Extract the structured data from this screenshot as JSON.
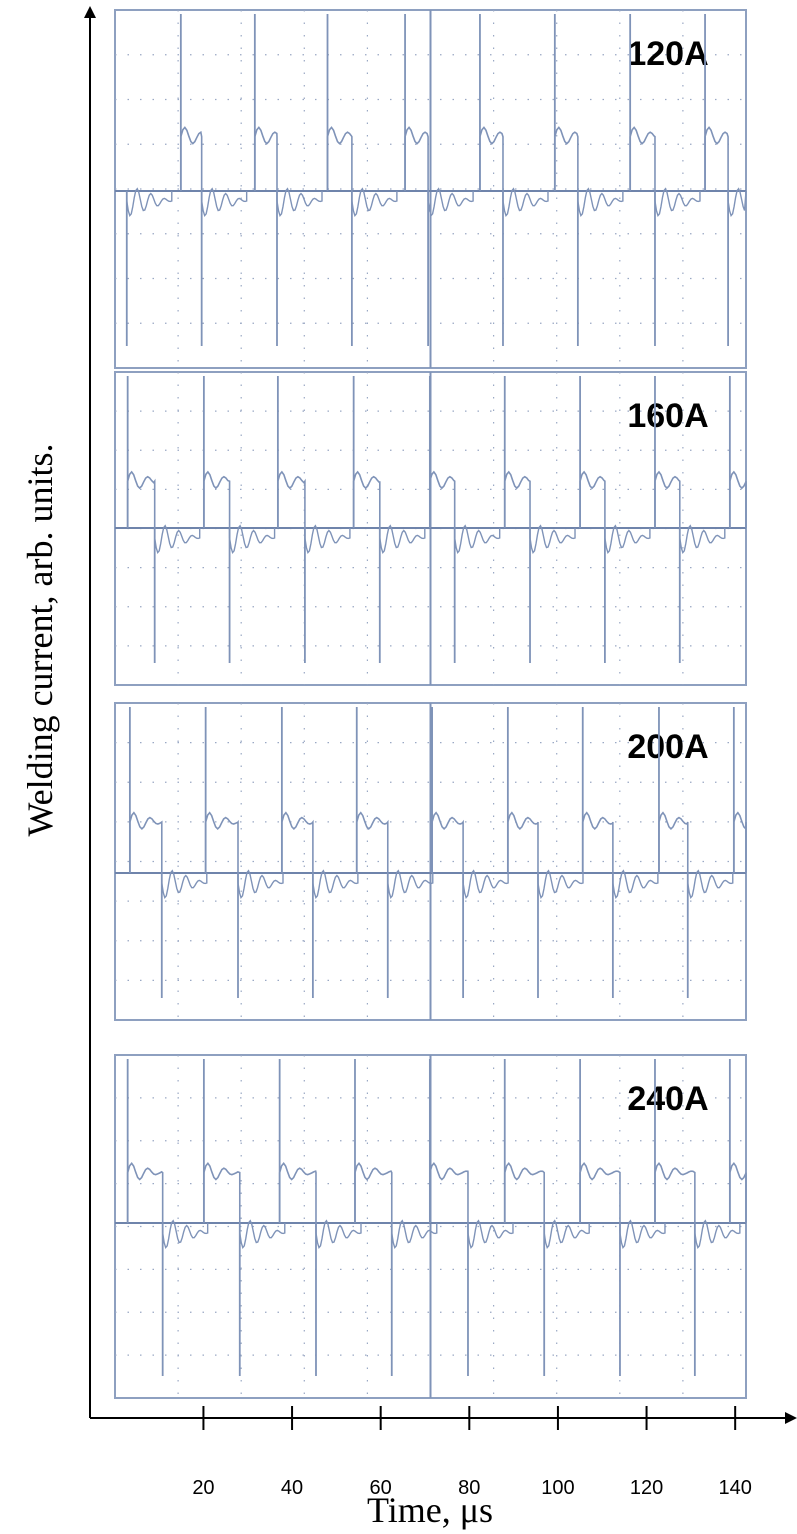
{
  "chart_data": {
    "type": "waveform",
    "xlabel": "Time, μs",
    "ylabel": "Welding current, arb. units.",
    "xlim": [
      -5.6,
      153.5
    ],
    "xticks": [
      20,
      40,
      60,
      80,
      100,
      120,
      140
    ],
    "color": "#7f93b8",
    "panels": [
      {
        "label": "120A",
        "pos_spikes": [
          14.9,
          31.6,
          48,
          65.5,
          82.4,
          99.3,
          116.3,
          133.2
        ],
        "neg_spikes": [
          2.7,
          19.6,
          36.6,
          53.5,
          70.7,
          87.6,
          104.5,
          121.9,
          138.4
        ]
      },
      {
        "label": "160A",
        "pos_spikes": [
          2.9,
          20.1,
          36.8,
          53.9,
          71.1,
          88,
          105,
          121.9,
          138.8
        ],
        "neg_spikes": [
          9,
          25.9,
          42.9,
          59.8,
          76.7,
          93.7,
          110.6,
          127.5
        ]
      },
      {
        "label": "200A",
        "pos_spikes": [
          3.4,
          20.5,
          37.7,
          54.6,
          71.6,
          88.7,
          105.6,
          122.8,
          139.7
        ],
        "neg_spikes": [
          10.6,
          27.8,
          44.7,
          61.6,
          78.6,
          95.5,
          112.4,
          129.3
        ]
      },
      {
        "label": "240A",
        "pos_spikes": [
          2.9,
          20.1,
          37.2,
          54.2,
          71.1,
          88,
          105,
          121.9,
          138.8
        ],
        "neg_spikes": [
          10.8,
          28.2,
          45.4,
          62.5,
          79.7,
          96.9,
          114,
          130.9
        ]
      }
    ]
  }
}
